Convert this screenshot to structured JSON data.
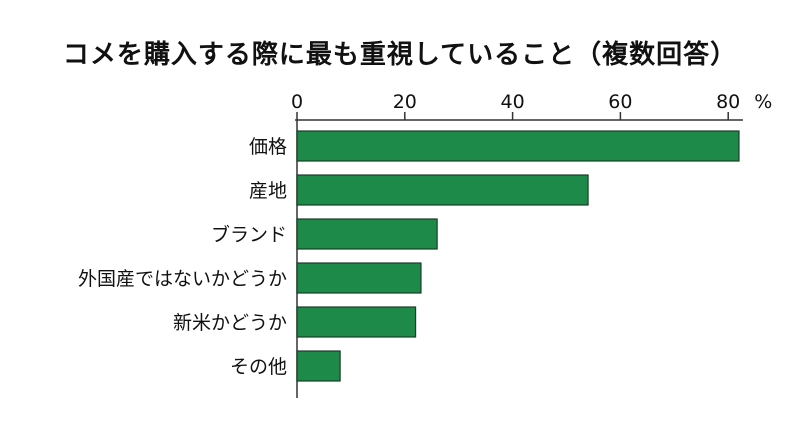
{
  "chart_data": {
    "type": "bar",
    "orientation": "horizontal",
    "title": "コメを購入する際に最も重視していること（複数回答）",
    "unit": "%",
    "categories": [
      "価格",
      "産地",
      "ブランド",
      "外国産ではないかどうか",
      "新米かどうか",
      "その他"
    ],
    "values": [
      82,
      54,
      26,
      23,
      22,
      8
    ],
    "xlim": [
      0,
      82
    ],
    "xticks": [
      0,
      20,
      40,
      60,
      80
    ],
    "axis_position": "top",
    "grid": false,
    "legend": "none",
    "bar_color": "#1e8a4a"
  }
}
